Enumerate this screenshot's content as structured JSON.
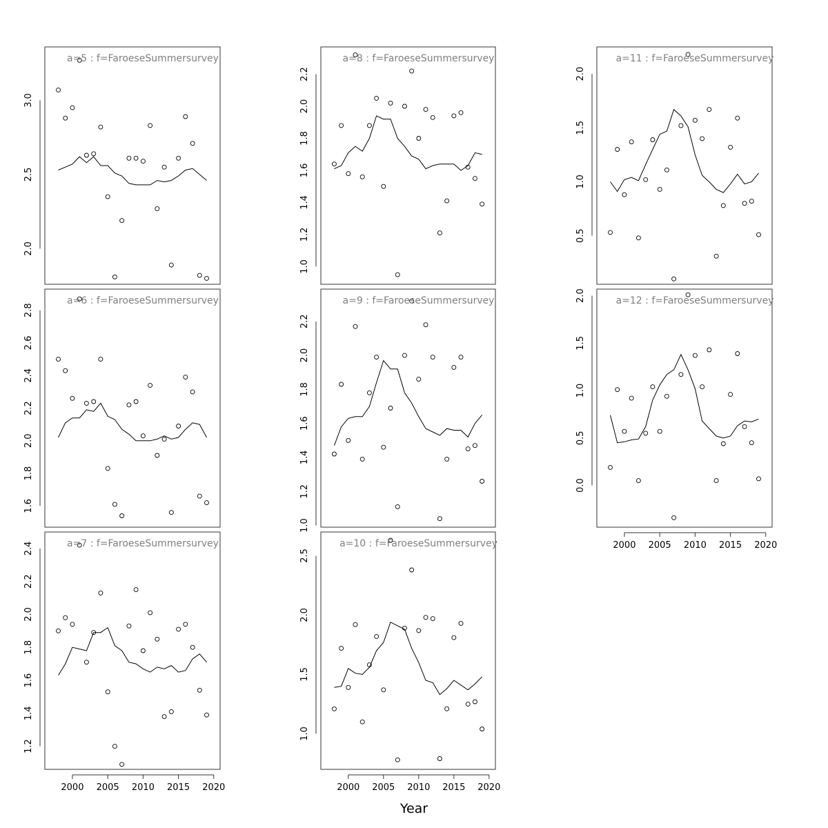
{
  "xlabel": "Year",
  "colors": {
    "title": "#7f7f7f",
    "line": "#000000",
    "point": "#000000",
    "frame": "#333333"
  },
  "chart_data": [
    {
      "type": "line",
      "title": "a=5  :  f=FaroeseSummersurvey",
      "x": [
        1998,
        1999,
        2000,
        2001,
        2002,
        2003,
        2004,
        2005,
        2006,
        2007,
        2008,
        2009,
        2010,
        2011,
        2012,
        2013,
        2014,
        2015,
        2016,
        2017,
        2018,
        2019
      ],
      "xlim": [
        1996.1,
        2020.9
      ],
      "ylim": [
        1.76,
        3.36
      ],
      "yticks": [
        2.0,
        2.5,
        3.0
      ],
      "series": [
        {
          "kind": "line",
          "values": [
            2.53,
            2.55,
            2.57,
            2.62,
            2.58,
            2.62,
            2.56,
            2.56,
            2.51,
            2.49,
            2.44,
            2.43,
            2.43,
            2.43,
            2.46,
            2.45,
            2.46,
            2.49,
            2.53,
            2.54,
            2.5,
            2.46
          ]
        },
        {
          "kind": "points",
          "values": [
            3.07,
            2.88,
            2.95,
            3.27,
            2.63,
            2.64,
            2.82,
            2.35,
            1.81,
            2.19,
            2.61,
            2.61,
            2.59,
            2.83,
            2.27,
            2.55,
            1.89,
            2.61,
            2.89,
            2.71,
            1.82,
            1.8
          ]
        }
      ]
    },
    {
      "type": "line",
      "title": "a=6  :  f=FaroeseSummersurvey",
      "x": [
        1998,
        1999,
        2000,
        2001,
        2002,
        2003,
        2004,
        2005,
        2006,
        2007,
        2008,
        2009,
        2010,
        2011,
        2012,
        2013,
        2014,
        2015,
        2016,
        2017,
        2018,
        2019
      ],
      "xlim": [
        1996.1,
        2020.9
      ],
      "ylim": [
        1.47,
        2.93
      ],
      "yticks": [
        1.6,
        1.8,
        2.0,
        2.2,
        2.4,
        2.6,
        2.8
      ],
      "series": [
        {
          "kind": "line",
          "values": [
            2.02,
            2.11,
            2.14,
            2.14,
            2.19,
            2.18,
            2.23,
            2.15,
            2.13,
            2.07,
            2.04,
            2.0,
            2.0,
            2.0,
            2.01,
            2.03,
            2.01,
            2.02,
            2.07,
            2.11,
            2.1,
            2.02
          ]
        },
        {
          "kind": "points",
          "values": [
            2.5,
            2.43,
            2.26,
            2.87,
            2.23,
            2.24,
            2.5,
            1.83,
            1.61,
            1.54,
            2.22,
            2.24,
            2.03,
            2.34,
            1.91,
            2.01,
            1.56,
            2.09,
            2.39,
            2.3,
            1.66,
            1.62
          ]
        }
      ]
    },
    {
      "type": "line",
      "title": "a=7  :  f=FaroeseSummersurvey",
      "x": [
        1998,
        1999,
        2000,
        2001,
        2002,
        2003,
        2004,
        2005,
        2006,
        2007,
        2008,
        2009,
        2010,
        2011,
        2012,
        2013,
        2014,
        2015,
        2016,
        2017,
        2018,
        2019
      ],
      "xlim": [
        1996.1,
        2020.9
      ],
      "ylim": [
        1.06,
        2.5
      ],
      "yticks": [
        1.2,
        1.4,
        1.6,
        1.8,
        2.0,
        2.2,
        2.4
      ],
      "series": [
        {
          "kind": "line",
          "values": [
            1.63,
            1.7,
            1.8,
            1.79,
            1.78,
            1.89,
            1.89,
            1.92,
            1.81,
            1.78,
            1.71,
            1.7,
            1.67,
            1.65,
            1.68,
            1.67,
            1.69,
            1.65,
            1.66,
            1.73,
            1.76,
            1.71
          ]
        },
        {
          "kind": "points",
          "values": [
            1.9,
            1.98,
            1.94,
            2.42,
            1.71,
            1.89,
            2.13,
            1.53,
            1.2,
            1.09,
            1.93,
            2.15,
            1.78,
            2.01,
            1.85,
            1.38,
            1.41,
            1.91,
            1.94,
            1.8,
            1.54,
            1.39
          ]
        }
      ]
    },
    {
      "type": "line",
      "title": "a=8  :  f=FaroeseSummersurvey",
      "x": [
        1998,
        1999,
        2000,
        2001,
        2002,
        2003,
        2004,
        2005,
        2006,
        2007,
        2008,
        2009,
        2010,
        2011,
        2012,
        2013,
        2014,
        2015,
        2016,
        2017,
        2018,
        2019
      ],
      "xlim": [
        1996.1,
        2020.9
      ],
      "ylim": [
        0.89,
        2.37
      ],
      "yticks": [
        1.0,
        1.2,
        1.4,
        1.6,
        1.8,
        2.0,
        2.2
      ],
      "series": [
        {
          "kind": "line",
          "values": [
            1.61,
            1.63,
            1.71,
            1.75,
            1.72,
            1.8,
            1.94,
            1.92,
            1.92,
            1.8,
            1.75,
            1.69,
            1.67,
            1.61,
            1.63,
            1.64,
            1.64,
            1.64,
            1.6,
            1.63,
            1.71,
            1.7
          ]
        },
        {
          "kind": "points",
          "values": [
            1.64,
            1.88,
            1.58,
            2.32,
            1.56,
            1.88,
            2.05,
            1.5,
            2.02,
            0.95,
            2.0,
            2.22,
            1.8,
            1.98,
            1.93,
            1.21,
            1.41,
            1.94,
            1.96,
            1.62,
            1.55,
            1.39
          ]
        }
      ]
    },
    {
      "type": "line",
      "title": "a=9  :  f=FaroeseSummersurvey",
      "x": [
        1998,
        1999,
        2000,
        2001,
        2002,
        2003,
        2004,
        2005,
        2006,
        2007,
        2008,
        2009,
        2010,
        2011,
        2012,
        2013,
        2014,
        2015,
        2016,
        2017,
        2018,
        2019
      ],
      "xlim": [
        1996.1,
        2020.9
      ],
      "ylim": [
        0.99,
        2.39
      ],
      "yticks": [
        1.0,
        1.2,
        1.4,
        1.6,
        1.8,
        2.0,
        2.2
      ],
      "series": [
        {
          "kind": "line",
          "values": [
            1.47,
            1.58,
            1.63,
            1.64,
            1.64,
            1.7,
            1.84,
            1.97,
            1.92,
            1.92,
            1.78,
            1.72,
            1.64,
            1.57,
            1.55,
            1.53,
            1.57,
            1.56,
            1.56,
            1.52,
            1.6,
            1.65
          ]
        },
        {
          "kind": "points",
          "values": [
            1.42,
            1.83,
            1.5,
            2.17,
            1.39,
            1.78,
            1.99,
            1.46,
            1.69,
            1.11,
            2.0,
            2.32,
            1.86,
            2.18,
            1.99,
            1.04,
            1.39,
            1.93,
            1.99,
            1.45,
            1.47,
            1.26
          ]
        }
      ]
    },
    {
      "type": "line",
      "title": "a=10  :  f=FaroeseSummersurvey",
      "x": [
        1998,
        1999,
        2000,
        2001,
        2002,
        2003,
        2004,
        2005,
        2006,
        2007,
        2008,
        2009,
        2010,
        2011,
        2012,
        2013,
        2014,
        2015,
        2016,
        2017,
        2018,
        2019
      ],
      "xlim": [
        1996.1,
        2020.9
      ],
      "ylim": [
        0.7,
        2.7
      ],
      "yticks": [
        1.0,
        1.5,
        2.0,
        2.5
      ],
      "series": [
        {
          "kind": "line",
          "values": [
            1.39,
            1.4,
            1.55,
            1.51,
            1.5,
            1.56,
            1.7,
            1.77,
            1.94,
            1.91,
            1.88,
            1.72,
            1.6,
            1.45,
            1.43,
            1.33,
            1.38,
            1.45,
            1.41,
            1.37,
            1.42,
            1.48
          ]
        },
        {
          "kind": "points",
          "values": [
            1.21,
            1.72,
            1.39,
            1.92,
            1.1,
            1.58,
            1.82,
            1.37,
            2.63,
            0.78,
            1.89,
            2.38,
            1.87,
            1.98,
            1.97,
            0.79,
            1.21,
            1.81,
            1.93,
            1.25,
            1.27,
            1.04
          ]
        }
      ]
    },
    {
      "type": "line",
      "title": "a=11  :  f=FaroeseSummersurvey",
      "x": [
        1998,
        1999,
        2000,
        2001,
        2002,
        2003,
        2004,
        2005,
        2006,
        2007,
        2008,
        2009,
        2010,
        2011,
        2012,
        2013,
        2014,
        2015,
        2016,
        2017,
        2018,
        2019
      ],
      "xlim": [
        1996.1,
        2020.9
      ],
      "ylim": [
        0.05,
        2.25
      ],
      "yticks": [
        0.5,
        1.0,
        1.5,
        2.0
      ],
      "series": [
        {
          "kind": "line",
          "values": [
            1.0,
            0.91,
            1.02,
            1.04,
            1.01,
            1.16,
            1.3,
            1.44,
            1.47,
            1.67,
            1.61,
            1.51,
            1.25,
            1.06,
            1.0,
            0.93,
            0.9,
            0.98,
            1.07,
            0.98,
            1.0,
            1.08
          ]
        },
        {
          "kind": "points",
          "values": [
            0.53,
            1.3,
            0.88,
            1.37,
            0.48,
            1.02,
            1.39,
            0.93,
            1.11,
            0.1,
            1.52,
            2.18,
            1.57,
            1.4,
            1.67,
            0.31,
            0.78,
            1.32,
            1.59,
            0.8,
            0.82,
            0.51
          ]
        }
      ]
    },
    {
      "type": "line",
      "title": "a=12  :  f=FaroeseSummersurvey",
      "x": [
        1998,
        1999,
        2000,
        2001,
        2002,
        2003,
        2004,
        2005,
        2006,
        2007,
        2008,
        2009,
        2010,
        2011,
        2012,
        2013,
        2014,
        2015,
        2016,
        2017,
        2018,
        2019
      ],
      "xlim": [
        1996.1,
        2020.9
      ],
      "ylim": [
        -0.44,
        2.07
      ],
      "yticks": [
        0.0,
        0.5,
        1.0,
        1.5,
        2.0
      ],
      "series": [
        {
          "kind": "line",
          "values": [
            0.74,
            0.45,
            0.46,
            0.48,
            0.49,
            0.62,
            0.9,
            1.06,
            1.17,
            1.22,
            1.38,
            1.22,
            1.02,
            0.68,
            0.6,
            0.52,
            0.5,
            0.52,
            0.63,
            0.68,
            0.67,
            0.7
          ]
        },
        {
          "kind": "points",
          "values": [
            0.19,
            1.01,
            0.57,
            0.92,
            0.05,
            0.55,
            1.04,
            0.57,
            0.94,
            -0.34,
            1.17,
            2.01,
            1.37,
            1.04,
            1.43,
            0.05,
            0.44,
            0.96,
            1.39,
            0.62,
            0.45,
            0.07
          ]
        }
      ]
    }
  ],
  "xaxis": {
    "ticks": [
      2000,
      2005,
      2010,
      2015,
      2020
    ]
  }
}
